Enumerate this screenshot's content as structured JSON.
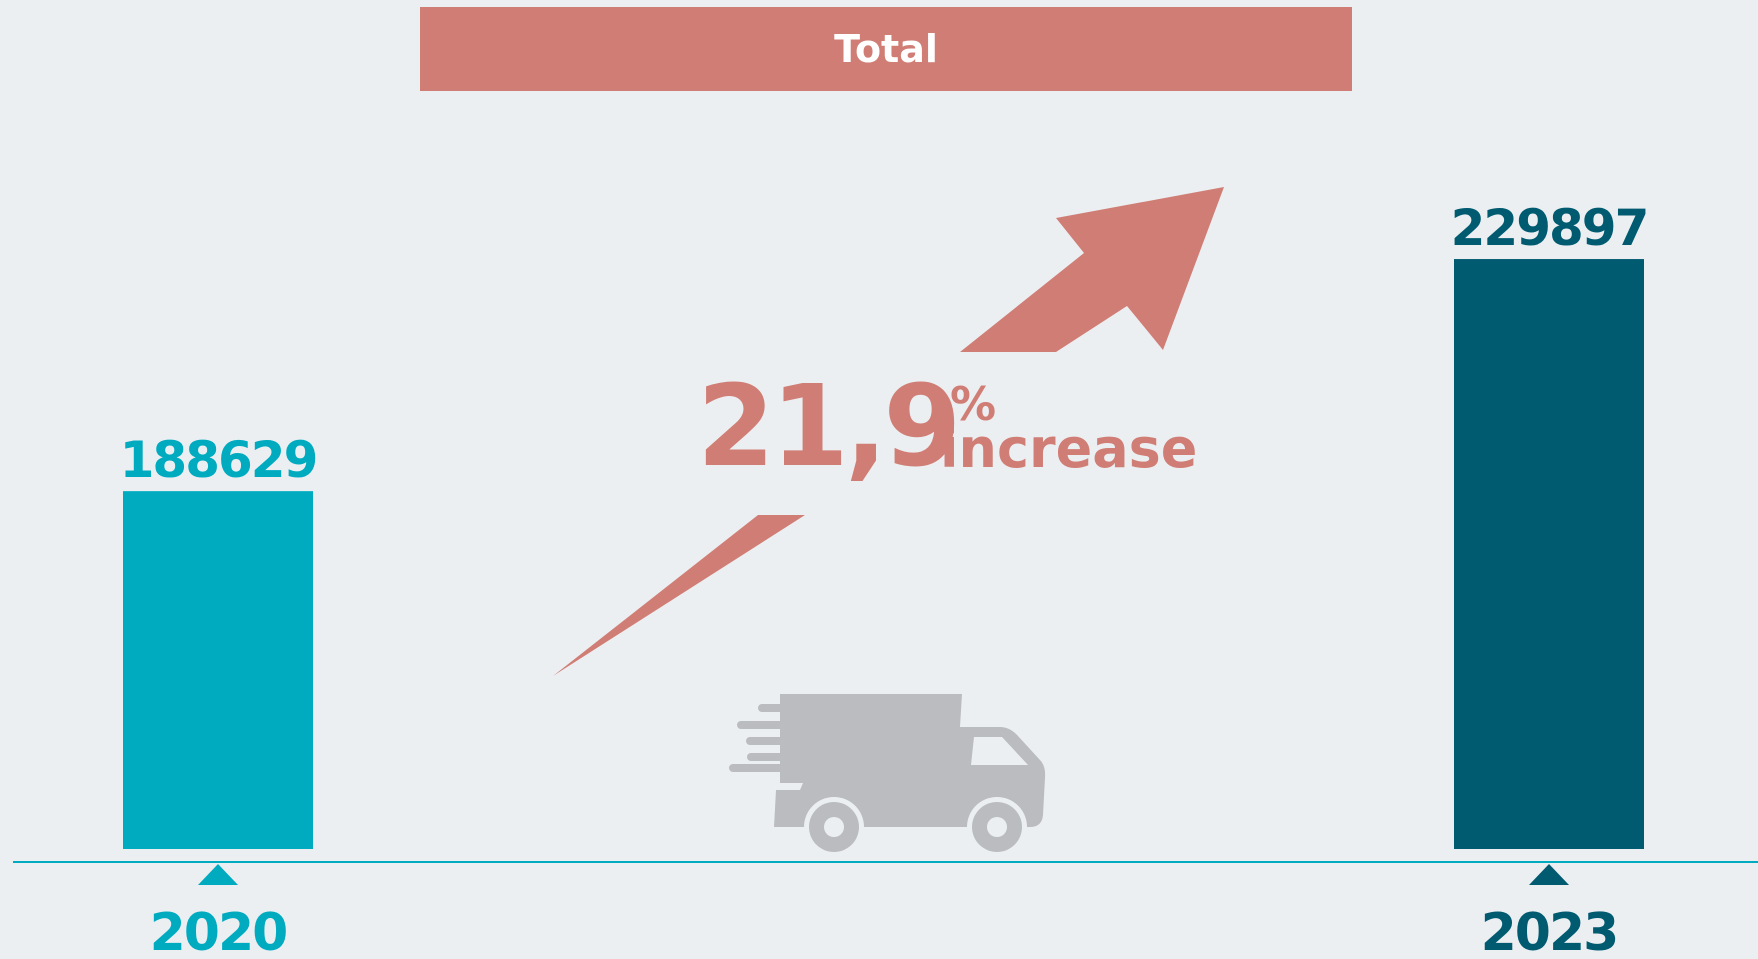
{
  "chart_data": {
    "type": "bar",
    "title": "Total",
    "categories": [
      "2020",
      "2023"
    ],
    "values": [
      188629,
      229897
    ],
    "colors": [
      "#00abc0",
      "#005a70"
    ],
    "ylim": [
      125000,
      250000
    ],
    "annotation": {
      "change": "21,9",
      "unit": "%",
      "text": "increase"
    }
  }
}
